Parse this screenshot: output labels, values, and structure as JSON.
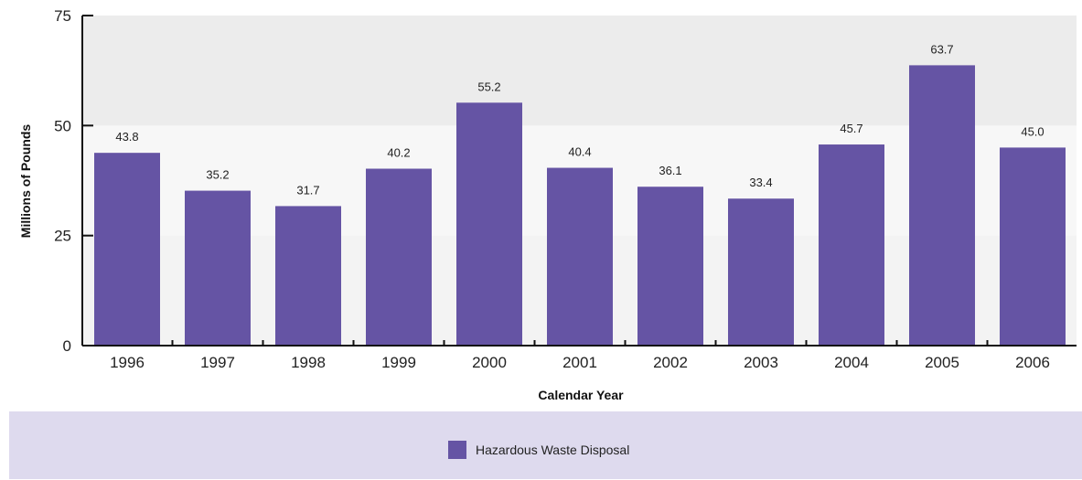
{
  "chart_data": {
    "type": "bar",
    "categories": [
      "1996",
      "1997",
      "1998",
      "1999",
      "2000",
      "2001",
      "2002",
      "2003",
      "2004",
      "2005",
      "2006"
    ],
    "values": [
      43.8,
      35.2,
      31.7,
      40.2,
      55.2,
      40.4,
      36.1,
      33.4,
      45.7,
      63.7,
      45.0
    ],
    "value_labels": [
      "43.8",
      "35.2",
      "31.7",
      "40.2",
      "55.2",
      "40.4",
      "36.1",
      "33.4",
      "45.7",
      "63.7",
      "45.0"
    ],
    "series": [
      {
        "name": "Hazardous Waste Disposal",
        "values": [
          43.8,
          35.2,
          31.7,
          40.2,
          55.2,
          40.4,
          36.1,
          33.4,
          45.7,
          63.7,
          45.0
        ]
      }
    ],
    "title": "",
    "xlabel": "Calendar Year",
    "ylabel": "Millions of Pounds",
    "ylim": [
      0,
      75
    ],
    "yticks": [
      0,
      25,
      50,
      75
    ],
    "legend_placement": "bottom",
    "grid": false,
    "colors": {
      "bar": "#6554a4",
      "legend_band": "#dedaee"
    }
  }
}
